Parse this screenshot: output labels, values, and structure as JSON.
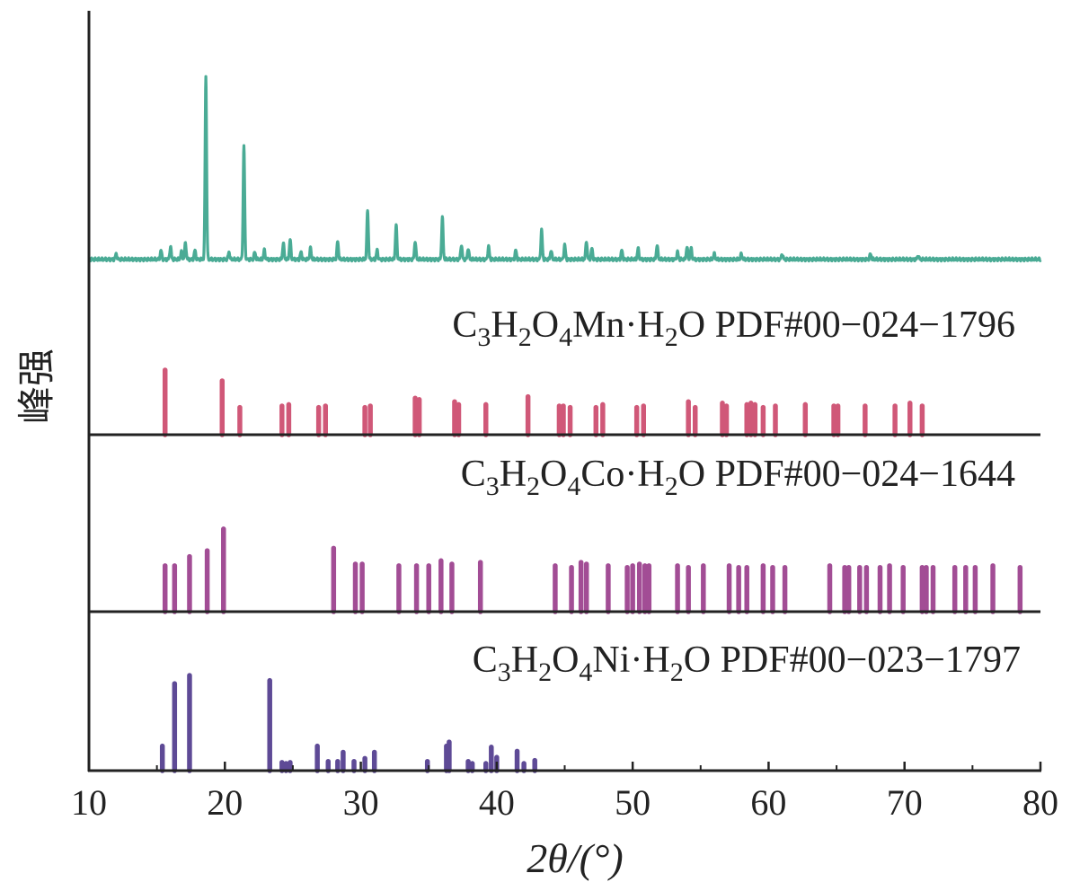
{
  "chart_data": {
    "type": "bar",
    "title": "",
    "xlabel": "2θ/(°)",
    "ylabel": "峰强",
    "xlim": [
      10,
      80
    ],
    "xticks": [
      10,
      20,
      30,
      40,
      50,
      60,
      70,
      80
    ],
    "colors": {
      "measured": "#4aab95",
      "mn": "#d05878",
      "co": "#a24d95",
      "ni": "#5e4a96",
      "axis": "#222222"
    },
    "measured": {
      "baseline": 0.02,
      "peaks": [
        {
          "x": 12.0,
          "y": 0.03
        },
        {
          "x": 15.3,
          "y": 0.05
        },
        {
          "x": 16.0,
          "y": 0.07
        },
        {
          "x": 16.8,
          "y": 0.04
        },
        {
          "x": 17.1,
          "y": 0.09
        },
        {
          "x": 17.8,
          "y": 0.05
        },
        {
          "x": 18.6,
          "y": 1.0
        },
        {
          "x": 20.3,
          "y": 0.04
        },
        {
          "x": 21.4,
          "y": 0.62
        },
        {
          "x": 22.2,
          "y": 0.04
        },
        {
          "x": 22.9,
          "y": 0.05
        },
        {
          "x": 24.3,
          "y": 0.09
        },
        {
          "x": 24.8,
          "y": 0.11
        },
        {
          "x": 25.6,
          "y": 0.04
        },
        {
          "x": 26.3,
          "y": 0.06
        },
        {
          "x": 28.3,
          "y": 0.1
        },
        {
          "x": 30.5,
          "y": 0.27
        },
        {
          "x": 31.2,
          "y": 0.05
        },
        {
          "x": 32.6,
          "y": 0.19
        },
        {
          "x": 34.0,
          "y": 0.1
        },
        {
          "x": 36.0,
          "y": 0.23
        },
        {
          "x": 37.4,
          "y": 0.08
        },
        {
          "x": 37.9,
          "y": 0.06
        },
        {
          "x": 39.4,
          "y": 0.07
        },
        {
          "x": 41.4,
          "y": 0.05
        },
        {
          "x": 43.3,
          "y": 0.16
        },
        {
          "x": 44.0,
          "y": 0.05
        },
        {
          "x": 45.0,
          "y": 0.08
        },
        {
          "x": 46.6,
          "y": 0.1
        },
        {
          "x": 47.0,
          "y": 0.06
        },
        {
          "x": 49.2,
          "y": 0.05
        },
        {
          "x": 50.4,
          "y": 0.06
        },
        {
          "x": 51.8,
          "y": 0.08
        },
        {
          "x": 53.3,
          "y": 0.04
        },
        {
          "x": 54.0,
          "y": 0.07
        },
        {
          "x": 54.3,
          "y": 0.06
        },
        {
          "x": 56.0,
          "y": 0.03
        },
        {
          "x": 58.0,
          "y": 0.03
        },
        {
          "x": 61.0,
          "y": 0.03
        },
        {
          "x": 67.5,
          "y": 0.03
        },
        {
          "x": 71.0,
          "y": 0.02
        }
      ]
    },
    "series": [
      {
        "name": "C3H2O4Mn·H2O PDF#00-024-1796",
        "label": {
          "parts": [
            {
              "t": "C",
              "sub": false
            },
            {
              "t": "3",
              "sub": true
            },
            {
              "t": "H",
              "sub": false
            },
            {
              "t": "2",
              "sub": true
            },
            {
              "t": "O",
              "sub": false
            },
            {
              "t": "4",
              "sub": true
            },
            {
              "t": "Mn·H",
              "sub": false
            },
            {
              "t": "2",
              "sub": true
            },
            {
              "t": "O PDF#00−024−1796",
              "sub": false
            }
          ]
        },
        "peaks": [
          {
            "x": 15.6,
            "y": 0.9
          },
          {
            "x": 19.8,
            "y": 0.75
          },
          {
            "x": 21.1,
            "y": 0.38
          },
          {
            "x": 24.2,
            "y": 0.4
          },
          {
            "x": 24.7,
            "y": 0.42
          },
          {
            "x": 26.9,
            "y": 0.38
          },
          {
            "x": 27.4,
            "y": 0.4
          },
          {
            "x": 30.3,
            "y": 0.38
          },
          {
            "x": 30.7,
            "y": 0.4
          },
          {
            "x": 34.0,
            "y": 0.51
          },
          {
            "x": 34.3,
            "y": 0.49
          },
          {
            "x": 36.9,
            "y": 0.46
          },
          {
            "x": 37.2,
            "y": 0.42
          },
          {
            "x": 39.2,
            "y": 0.42
          },
          {
            "x": 42.3,
            "y": 0.53
          },
          {
            "x": 44.6,
            "y": 0.4
          },
          {
            "x": 44.9,
            "y": 0.4
          },
          {
            "x": 45.4,
            "y": 0.38
          },
          {
            "x": 47.3,
            "y": 0.38
          },
          {
            "x": 47.8,
            "y": 0.42
          },
          {
            "x": 50.3,
            "y": 0.38
          },
          {
            "x": 50.8,
            "y": 0.4
          },
          {
            "x": 54.1,
            "y": 0.46
          },
          {
            "x": 54.6,
            "y": 0.38
          },
          {
            "x": 56.6,
            "y": 0.44
          },
          {
            "x": 56.9,
            "y": 0.4
          },
          {
            "x": 58.4,
            "y": 0.42
          },
          {
            "x": 58.7,
            "y": 0.44
          },
          {
            "x": 59.0,
            "y": 0.42
          },
          {
            "x": 59.6,
            "y": 0.38
          },
          {
            "x": 60.5,
            "y": 0.4
          },
          {
            "x": 62.7,
            "y": 0.42
          },
          {
            "x": 64.8,
            "y": 0.4
          },
          {
            "x": 65.1,
            "y": 0.4
          },
          {
            "x": 67.1,
            "y": 0.4
          },
          {
            "x": 69.3,
            "y": 0.4
          },
          {
            "x": 70.4,
            "y": 0.44
          },
          {
            "x": 71.3,
            "y": 0.4
          }
        ]
      },
      {
        "name": "C3H2O4Co·H2O PDF#00-024-1644",
        "label": {
          "parts": [
            {
              "t": "C",
              "sub": false
            },
            {
              "t": "3",
              "sub": true
            },
            {
              "t": "H",
              "sub": false
            },
            {
              "t": "2",
              "sub": true
            },
            {
              "t": "O",
              "sub": false
            },
            {
              "t": "4",
              "sub": true
            },
            {
              "t": "Co·H",
              "sub": false
            },
            {
              "t": "2",
              "sub": true
            },
            {
              "t": "O PDF#00−024−1644",
              "sub": false
            }
          ]
        },
        "peaks": [
          {
            "x": 15.6,
            "y": 0.55
          },
          {
            "x": 16.3,
            "y": 0.55
          },
          {
            "x": 17.4,
            "y": 0.66
          },
          {
            "x": 18.7,
            "y": 0.73
          },
          {
            "x": 19.9,
            "y": 0.99
          },
          {
            "x": 28.0,
            "y": 0.76
          },
          {
            "x": 29.6,
            "y": 0.57
          },
          {
            "x": 30.1,
            "y": 0.57
          },
          {
            "x": 32.8,
            "y": 0.55
          },
          {
            "x": 34.1,
            "y": 0.55
          },
          {
            "x": 35.0,
            "y": 0.55
          },
          {
            "x": 35.9,
            "y": 0.61
          },
          {
            "x": 36.7,
            "y": 0.57
          },
          {
            "x": 38.8,
            "y": 0.59
          },
          {
            "x": 44.3,
            "y": 0.55
          },
          {
            "x": 45.5,
            "y": 0.53
          },
          {
            "x": 46.2,
            "y": 0.59
          },
          {
            "x": 46.6,
            "y": 0.57
          },
          {
            "x": 48.2,
            "y": 0.55
          },
          {
            "x": 49.6,
            "y": 0.53
          },
          {
            "x": 50.0,
            "y": 0.55
          },
          {
            "x": 50.5,
            "y": 0.57
          },
          {
            "x": 50.9,
            "y": 0.55
          },
          {
            "x": 51.2,
            "y": 0.55
          },
          {
            "x": 53.3,
            "y": 0.55
          },
          {
            "x": 54.1,
            "y": 0.53
          },
          {
            "x": 55.2,
            "y": 0.55
          },
          {
            "x": 57.1,
            "y": 0.55
          },
          {
            "x": 57.8,
            "y": 0.53
          },
          {
            "x": 58.4,
            "y": 0.53
          },
          {
            "x": 59.6,
            "y": 0.55
          },
          {
            "x": 60.3,
            "y": 0.53
          },
          {
            "x": 61.2,
            "y": 0.53
          },
          {
            "x": 64.5,
            "y": 0.55
          },
          {
            "x": 65.6,
            "y": 0.53
          },
          {
            "x": 65.9,
            "y": 0.53
          },
          {
            "x": 66.7,
            "y": 0.53
          },
          {
            "x": 67.2,
            "y": 0.53
          },
          {
            "x": 68.2,
            "y": 0.53
          },
          {
            "x": 68.9,
            "y": 0.55
          },
          {
            "x": 69.9,
            "y": 0.53
          },
          {
            "x": 71.3,
            "y": 0.53
          },
          {
            "x": 71.6,
            "y": 0.53
          },
          {
            "x": 72.1,
            "y": 0.53
          },
          {
            "x": 73.7,
            "y": 0.53
          },
          {
            "x": 74.5,
            "y": 0.53
          },
          {
            "x": 75.2,
            "y": 0.53
          },
          {
            "x": 76.5,
            "y": 0.55
          },
          {
            "x": 78.5,
            "y": 0.53
          }
        ]
      },
      {
        "name": "C3H2O4Ni·H2O PDF#00-023-1797",
        "label": {
          "parts": [
            {
              "t": "C",
              "sub": false
            },
            {
              "t": "3",
              "sub": true
            },
            {
              "t": "H",
              "sub": false
            },
            {
              "t": "2",
              "sub": true
            },
            {
              "t": "O",
              "sub": false
            },
            {
              "t": "4",
              "sub": true
            },
            {
              "t": "Ni·H",
              "sub": false
            },
            {
              "t": "2",
              "sub": true
            },
            {
              "t": "O PDF#00−023−1797",
              "sub": false
            }
          ]
        },
        "peaks": [
          {
            "x": 15.4,
            "y": 0.24
          },
          {
            "x": 16.3,
            "y": 0.85
          },
          {
            "x": 17.4,
            "y": 0.93
          },
          {
            "x": 23.3,
            "y": 0.88
          },
          {
            "x": 24.2,
            "y": 0.08
          },
          {
            "x": 24.5,
            "y": 0.07
          },
          {
            "x": 24.8,
            "y": 0.08
          },
          {
            "x": 26.8,
            "y": 0.24
          },
          {
            "x": 27.6,
            "y": 0.09
          },
          {
            "x": 28.3,
            "y": 0.09
          },
          {
            "x": 28.7,
            "y": 0.18
          },
          {
            "x": 29.5,
            "y": 0.09
          },
          {
            "x": 30.3,
            "y": 0.12
          },
          {
            "x": 31.0,
            "y": 0.18
          },
          {
            "x": 34.9,
            "y": 0.09
          },
          {
            "x": 36.3,
            "y": 0.24
          },
          {
            "x": 36.5,
            "y": 0.28
          },
          {
            "x": 37.9,
            "y": 0.09
          },
          {
            "x": 38.2,
            "y": 0.07
          },
          {
            "x": 39.2,
            "y": 0.07
          },
          {
            "x": 39.6,
            "y": 0.23
          },
          {
            "x": 40.0,
            "y": 0.13
          },
          {
            "x": 41.5,
            "y": 0.19
          },
          {
            "x": 42.0,
            "y": 0.07
          },
          {
            "x": 42.8,
            "y": 0.1
          }
        ]
      }
    ]
  }
}
